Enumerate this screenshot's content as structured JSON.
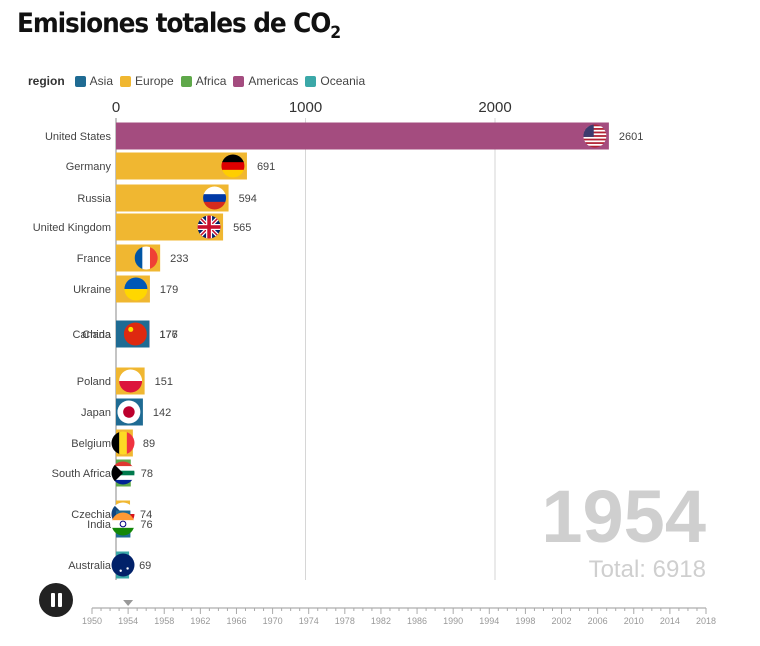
{
  "title": {
    "main": "Emisiones totales de CO",
    "sub": "2"
  },
  "legend": {
    "title": "region",
    "items": [
      {
        "label": "Asia",
        "color": "#1f6b93"
      },
      {
        "label": "Europe",
        "color": "#f0b731"
      },
      {
        "label": "Africa",
        "color": "#5fa84a"
      },
      {
        "label": "Americas",
        "color": "#a44c7f"
      },
      {
        "label": "Oceania",
        "color": "#3ba8a8"
      }
    ]
  },
  "chart_data": {
    "type": "bar",
    "orientation": "horizontal",
    "title": "Emisiones totales de CO2",
    "x_ticks": [
      0,
      1000,
      2000
    ],
    "xlim": [
      0,
      3100
    ],
    "grid": true,
    "year": "1954",
    "total_label": "Total: 6918",
    "series": [
      {
        "country": "United States",
        "value": 2601,
        "region": "Americas",
        "flag": "us-flag"
      },
      {
        "country": "Germany",
        "value": 691,
        "region": "Europe",
        "flag": "germany-flag"
      },
      {
        "country": "Russia",
        "value": 594,
        "region": "Europe",
        "flag": "russia-flag"
      },
      {
        "country": "United Kingdom",
        "value": 565,
        "region": "Europe",
        "flag": "uk-flag"
      },
      {
        "country": "France",
        "value": 233,
        "region": "Europe",
        "flag": "france-flag"
      },
      {
        "country": "Ukraine",
        "value": 179,
        "region": "Europe",
        "flag": "ukraine-flag"
      },
      {
        "country": "Canada",
        "value": 177,
        "region": "Americas",
        "flag": "canada-flag"
      },
      {
        "country": "China",
        "value": 176,
        "region": "Asia",
        "flag": "china-flag"
      },
      {
        "country": "Poland",
        "value": 151,
        "region": "Europe",
        "flag": "poland-flag"
      },
      {
        "country": "Japan",
        "value": 142,
        "region": "Asia",
        "flag": "japan-flag"
      },
      {
        "country": "Belgium",
        "value": 89,
        "region": "Europe",
        "flag": "belgium-flag"
      },
      {
        "country": "South Africa",
        "value": 78,
        "region": "Africa",
        "flag": "south-africa-flag"
      },
      {
        "country": "Czechia",
        "value": 74,
        "region": "Europe",
        "flag": "czechia-flag"
      },
      {
        "country": "India",
        "value": 76,
        "region": "Asia",
        "flag": "india-flag"
      },
      {
        "country": "Australia",
        "value": 69,
        "region": "Oceania",
        "flag": "australia-flag"
      }
    ]
  },
  "timeline": {
    "labels": [
      "1950",
      "1954",
      "1958",
      "1962",
      "1966",
      "1970",
      "1974",
      "1978",
      "1982",
      "1986",
      "1990",
      "1994",
      "1998",
      "2002",
      "2006",
      "2010",
      "2014",
      "2018"
    ],
    "current": "1954"
  },
  "controls": {
    "pause_icon": "pause-icon"
  }
}
